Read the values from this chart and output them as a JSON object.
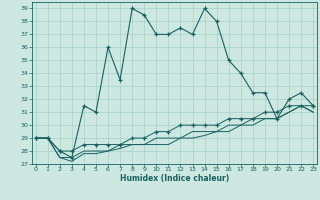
{
  "xlabel": "Humidex (Indice chaleur)",
  "background_color": "#cce8e0",
  "grid_color": "#a8d0c8",
  "line_color": "#1a6060",
  "x_values": [
    0,
    1,
    2,
    3,
    4,
    5,
    6,
    7,
    8,
    9,
    10,
    11,
    12,
    13,
    14,
    15,
    16,
    17,
    18,
    19,
    20,
    21,
    22,
    23
  ],
  "series1": [
    29,
    29,
    28,
    27.5,
    31.5,
    31,
    36,
    33.5,
    39,
    38.5,
    37,
    37,
    37.5,
    37,
    39,
    38,
    35,
    34,
    32.5,
    32.5,
    30.5,
    32,
    32.5,
    31.5
  ],
  "series2": [
    29,
    29,
    28,
    28,
    28.5,
    28.5,
    28.5,
    28.5,
    29,
    29,
    29.5,
    29.5,
    30,
    30,
    30,
    30,
    30.5,
    30.5,
    30.5,
    31,
    31,
    31.5,
    31.5,
    31.5
  ],
  "series3": [
    29,
    29,
    27.5,
    27.5,
    28,
    28,
    28,
    28.5,
    28.5,
    28.5,
    29,
    29,
    29,
    29.5,
    29.5,
    29.5,
    30,
    30,
    30.5,
    30.5,
    30.5,
    31,
    31.5,
    31
  ],
  "series4": [
    29,
    29,
    27.5,
    27.2,
    27.8,
    27.8,
    28,
    28.2,
    28.5,
    28.5,
    28.5,
    28.5,
    29,
    29,
    29.2,
    29.5,
    29.5,
    30,
    30,
    30.5,
    30.5,
    31,
    31.5,
    31
  ],
  "ylim": [
    27,
    39.5
  ],
  "xlim": [
    0,
    23
  ],
  "yticks": [
    27,
    28,
    29,
    30,
    31,
    32,
    33,
    34,
    35,
    36,
    37,
    38,
    39
  ],
  "xticks": [
    0,
    1,
    2,
    3,
    4,
    5,
    6,
    7,
    8,
    9,
    10,
    11,
    12,
    13,
    14,
    15,
    16,
    17,
    18,
    19,
    20,
    21,
    22,
    23
  ]
}
